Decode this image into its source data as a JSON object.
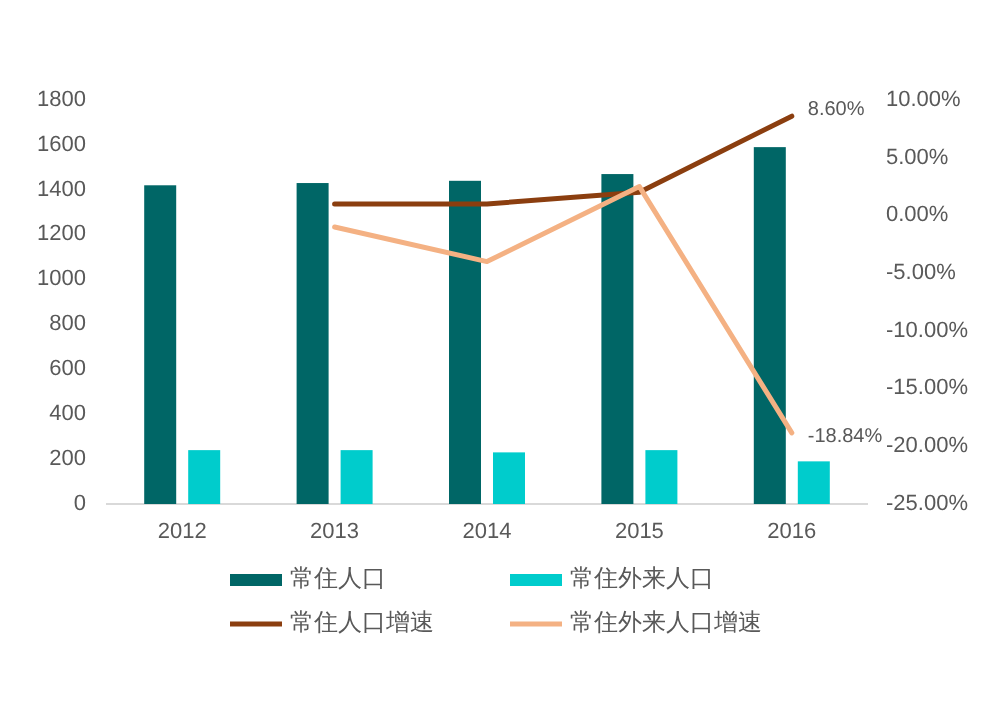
{
  "chart_data": {
    "type": "bar",
    "categories": [
      "2012",
      "2013",
      "2014",
      "2015",
      "2016"
    ],
    "series": [
      {
        "name": "常住人口",
        "color": "#006666",
        "values": [
          1420,
          1430,
          1440,
          1470,
          1590
        ]
      },
      {
        "name": "常住外来人口",
        "color": "#00cccc",
        "values": [
          240,
          240,
          230,
          240,
          190
        ]
      },
      {
        "name": "常住人口增速",
        "type": "line",
        "axis": "y2",
        "color": "#8b3e0f",
        "values": [
          null,
          1,
          1,
          2,
          8.6
        ],
        "value_labels": [
          null,
          null,
          null,
          null,
          "8.60%"
        ]
      },
      {
        "name": "常住外来人口增速",
        "type": "line",
        "axis": "y2",
        "color": "#f4b183",
        "values": [
          null,
          -1,
          -4,
          2.5,
          -18.84
        ],
        "value_labels": [
          null,
          null,
          null,
          null,
          "-18.84%"
        ]
      }
    ],
    "ylim": [
      0,
      1800
    ],
    "yticks": [
      0,
      200,
      400,
      600,
      800,
      1000,
      1200,
      1400,
      1600,
      1800
    ],
    "y2lim": [
      -25,
      10
    ],
    "y2ticks": [
      {
        "value": 10,
        "label": "10.00%"
      },
      {
        "value": 5,
        "label": "5.00%"
      },
      {
        "value": 0,
        "label": "0.00%"
      },
      {
        "value": -5,
        "label": "-5.00%"
      },
      {
        "value": -10,
        "label": "-10.00%"
      },
      {
        "value": -15,
        "label": "-15.00%"
      },
      {
        "value": -20,
        "label": "-20.00%"
      },
      {
        "value": -25,
        "label": "-25.00%"
      }
    ],
    "legend": "bottom",
    "grid": false,
    "marker": "none",
    "line_style": "solid"
  }
}
